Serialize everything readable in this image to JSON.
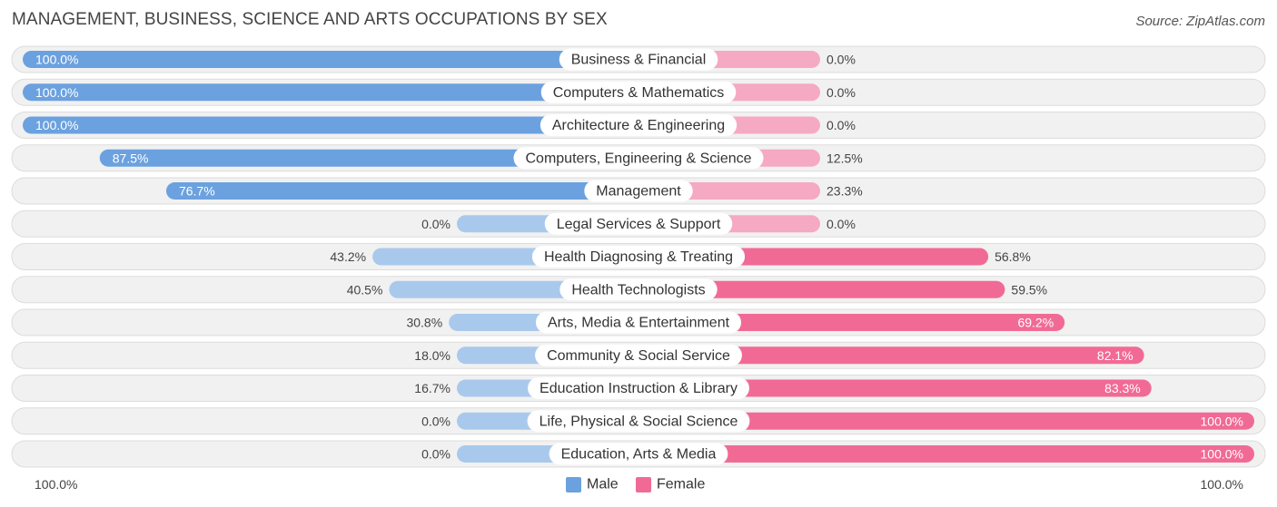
{
  "title": "MANAGEMENT, BUSINESS, SCIENCE AND ARTS OCCUPATIONS BY SEX",
  "source": "Source: ZipAtlas.com",
  "colors": {
    "male_strong": "#6ba1df",
    "male_light": "#a9c9ec",
    "female_strong": "#f16a95",
    "female_light": "#f6a9c2",
    "row_bg": "#f1f1f1",
    "row_border": "#dcdcdc"
  },
  "chart_data": {
    "type": "bar",
    "orientation": "horizontal-diverging",
    "title": "MANAGEMENT, BUSINESS, SCIENCE AND ARTS OCCUPATIONS BY SEX",
    "categories": [
      "Business & Financial",
      "Computers & Mathematics",
      "Architecture & Engineering",
      "Computers, Engineering & Science",
      "Management",
      "Legal Services & Support",
      "Health Diagnosing & Treating",
      "Health Technologists",
      "Arts, Media & Entertainment",
      "Community & Social Service",
      "Education Instruction & Library",
      "Life, Physical & Social Science",
      "Education, Arts & Media"
    ],
    "series": [
      {
        "name": "Male",
        "values": [
          100.0,
          100.0,
          100.0,
          87.5,
          76.7,
          0.0,
          43.2,
          40.5,
          30.8,
          18.0,
          16.7,
          0.0,
          0.0
        ],
        "labels": [
          "100.0%",
          "100.0%",
          "100.0%",
          "87.5%",
          "76.7%",
          "0.0%",
          "43.2%",
          "40.5%",
          "30.8%",
          "18.0%",
          "16.7%",
          "0.0%",
          "0.0%"
        ]
      },
      {
        "name": "Female",
        "values": [
          0.0,
          0.0,
          0.0,
          12.5,
          23.3,
          0.0,
          56.8,
          59.5,
          69.2,
          82.1,
          83.3,
          100.0,
          100.0
        ],
        "labels": [
          "0.0%",
          "0.0%",
          "0.0%",
          "12.5%",
          "23.3%",
          "0.0%",
          "56.8%",
          "59.5%",
          "69.2%",
          "82.1%",
          "83.3%",
          "100.0%",
          "100.0%"
        ]
      }
    ],
    "axis": {
      "left_label": "100.0%",
      "right_label": "100.0%",
      "range": [
        0,
        100
      ]
    },
    "legend": {
      "placement": "bottom-center",
      "items": [
        "Male",
        "Female"
      ]
    }
  }
}
